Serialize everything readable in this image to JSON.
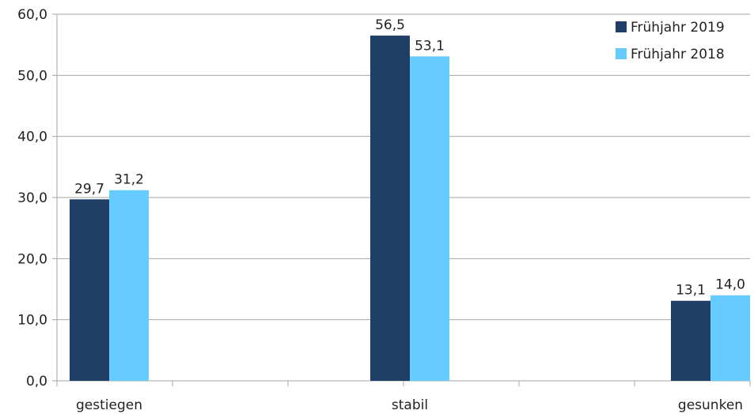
{
  "chart_data": {
    "type": "bar",
    "categories": [
      "gestiegen",
      "stabil",
      "gesunken"
    ],
    "series": [
      {
        "name": "Frühjahr 2019",
        "color": "#203f66",
        "values": [
          29.7,
          56.5,
          13.1
        ],
        "labels": [
          "29,7",
          "56,5",
          "13,1"
        ]
      },
      {
        "name": "Frühjahr 2018",
        "color": "#66ccff",
        "values": [
          31.2,
          53.1,
          14.0
        ],
        "labels": [
          "31,2",
          "53,1",
          "14,0"
        ]
      }
    ],
    "ylim": [
      0,
      60
    ],
    "yticks": [
      0,
      10,
      20,
      30,
      40,
      50,
      60
    ],
    "ytick_labels": [
      "0,0",
      "10,0",
      "20,0",
      "30,0",
      "40,0",
      "50,0",
      "60,0"
    ],
    "grid": true,
    "legend": "top-right",
    "title": "",
    "xlabel": "",
    "ylabel": ""
  }
}
